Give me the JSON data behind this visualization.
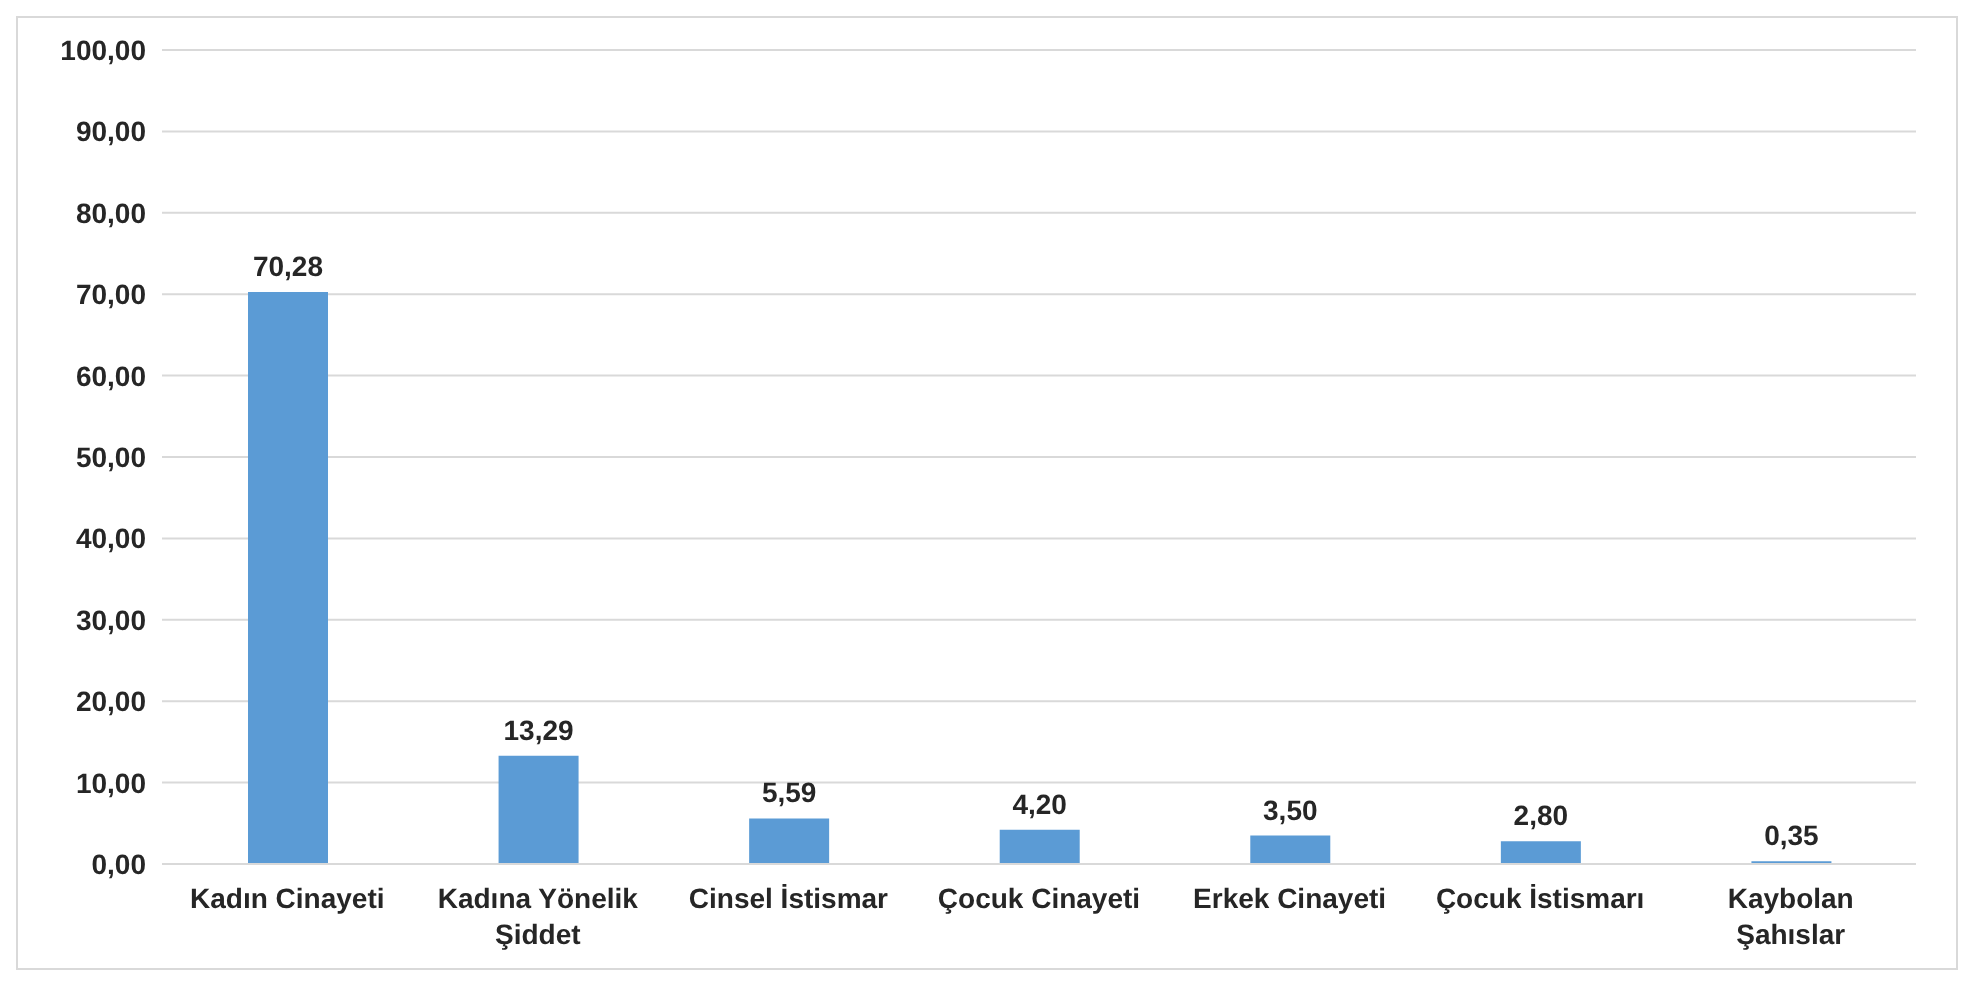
{
  "chart_data": {
    "type": "bar",
    "categories": [
      "Kadın Cinayeti",
      "Kadına Yönelik Şiddet",
      "Cinsel İstismar",
      "Çocuk Cinayeti",
      "Erkek Cinayeti",
      "Çocuk İstismarı",
      "Kaybolan Şahıslar"
    ],
    "values": [
      70.28,
      13.29,
      5.59,
      4.2,
      3.5,
      2.8,
      0.35
    ],
    "value_labels": [
      "70,28",
      "13,29",
      "5,59",
      "4,20",
      "3,50",
      "2,80",
      "0,35"
    ],
    "color": "#5b9bd5",
    "ylim": [
      0,
      100
    ],
    "yticks": [
      {
        "value": 0,
        "label": "0,00"
      },
      {
        "value": 10,
        "label": "10,00"
      },
      {
        "value": 20,
        "label": "20,00"
      },
      {
        "value": 30,
        "label": "30,00"
      },
      {
        "value": 40,
        "label": "40,00"
      },
      {
        "value": 50,
        "label": "50,00"
      },
      {
        "value": 60,
        "label": "60,00"
      },
      {
        "value": 70,
        "label": "70,00"
      },
      {
        "value": 80,
        "label": "80,00"
      },
      {
        "value": 90,
        "label": "90,00"
      },
      {
        "value": 100,
        "label": "100,00"
      }
    ],
    "grid": "y",
    "legend": false
  }
}
